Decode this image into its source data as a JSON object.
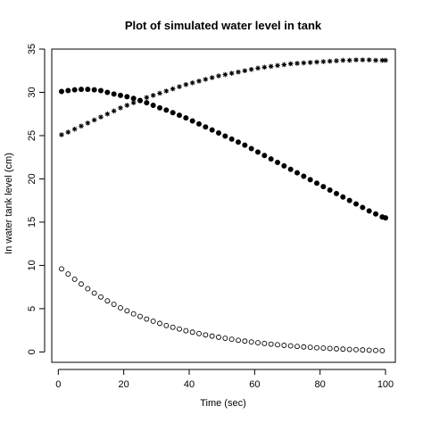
{
  "chart_data": {
    "type": "scatter",
    "title": "Plot of simulated water level in tank",
    "xlabel": "Time (sec)",
    "ylabel": "In water tank level (cm)",
    "xlim": [
      -2,
      103
    ],
    "ylim": [
      -1.2,
      35
    ],
    "xticks": [
      0,
      20,
      40,
      60,
      80,
      100
    ],
    "yticks": [
      0,
      5,
      10,
      15,
      20,
      25,
      30,
      35
    ],
    "grid": false,
    "legend": "none",
    "series": [
      {
        "marker": "filled-circle",
        "color": "#000000",
        "x": [
          1,
          3,
          5,
          7,
          9,
          11,
          13,
          15,
          17,
          19,
          21,
          23,
          25,
          27,
          29,
          31,
          33,
          35,
          37,
          39,
          41,
          43,
          45,
          47,
          49,
          51,
          53,
          55,
          57,
          59,
          61,
          63,
          65,
          67,
          69,
          71,
          73,
          75,
          77,
          79,
          81,
          83,
          85,
          87,
          89,
          91,
          93,
          95,
          97,
          99,
          100
        ],
        "y": [
          30.1,
          30.2,
          30.3,
          30.35,
          30.35,
          30.3,
          30.2,
          30.0,
          29.8,
          29.65,
          29.5,
          29.3,
          29.05,
          28.8,
          28.5,
          28.2,
          27.95,
          27.65,
          27.35,
          27.05,
          26.7,
          26.35,
          26.0,
          25.65,
          25.3,
          24.95,
          24.6,
          24.25,
          23.9,
          23.5,
          23.1,
          22.7,
          22.3,
          21.9,
          21.5,
          21.1,
          20.7,
          20.3,
          19.9,
          19.5,
          19.1,
          18.7,
          18.3,
          17.9,
          17.5,
          17.1,
          16.7,
          16.3,
          15.95,
          15.6,
          15.5
        ]
      },
      {
        "marker": "star",
        "color": "#000000",
        "x": [
          1,
          3,
          5,
          7,
          9,
          11,
          13,
          15,
          17,
          19,
          21,
          23,
          25,
          27,
          29,
          31,
          33,
          35,
          37,
          39,
          41,
          43,
          45,
          47,
          49,
          51,
          53,
          55,
          57,
          59,
          61,
          63,
          65,
          67,
          69,
          71,
          73,
          75,
          77,
          79,
          81,
          83,
          85,
          87,
          89,
          91,
          93,
          95,
          97,
          99,
          100
        ],
        "y": [
          25.1,
          25.4,
          25.75,
          26.1,
          26.45,
          26.8,
          27.15,
          27.5,
          27.85,
          28.2,
          28.5,
          28.8,
          29.1,
          29.4,
          29.65,
          29.9,
          30.15,
          30.4,
          30.65,
          30.9,
          31.1,
          31.3,
          31.5,
          31.7,
          31.9,
          32.05,
          32.2,
          32.35,
          32.5,
          32.65,
          32.8,
          32.9,
          33.0,
          33.1,
          33.2,
          33.3,
          33.35,
          33.4,
          33.45,
          33.5,
          33.55,
          33.6,
          33.65,
          33.7,
          33.7,
          33.75,
          33.75,
          33.75,
          33.7,
          33.7,
          33.7
        ]
      },
      {
        "marker": "open-circle",
        "color": "#000000",
        "x": [
          1,
          3,
          5,
          7,
          9,
          11,
          13,
          15,
          17,
          19,
          21,
          23,
          25,
          27,
          29,
          31,
          33,
          35,
          37,
          39,
          41,
          43,
          45,
          47,
          49,
          51,
          53,
          55,
          57,
          59,
          61,
          63,
          65,
          67,
          69,
          71,
          73,
          75,
          77,
          79,
          81,
          83,
          85,
          87,
          89,
          91,
          93,
          95,
          97,
          99
        ],
        "y": [
          9.6,
          9.0,
          8.4,
          7.85,
          7.3,
          6.8,
          6.35,
          5.9,
          5.5,
          5.1,
          4.75,
          4.4,
          4.1,
          3.8,
          3.55,
          3.3,
          3.05,
          2.85,
          2.65,
          2.45,
          2.28,
          2.12,
          1.97,
          1.83,
          1.7,
          1.58,
          1.46,
          1.35,
          1.25,
          1.15,
          1.06,
          0.98,
          0.9,
          0.83,
          0.76,
          0.7,
          0.64,
          0.58,
          0.53,
          0.48,
          0.44,
          0.4,
          0.36,
          0.32,
          0.29,
          0.26,
          0.23,
          0.2,
          0.17,
          0.15
        ]
      }
    ]
  }
}
